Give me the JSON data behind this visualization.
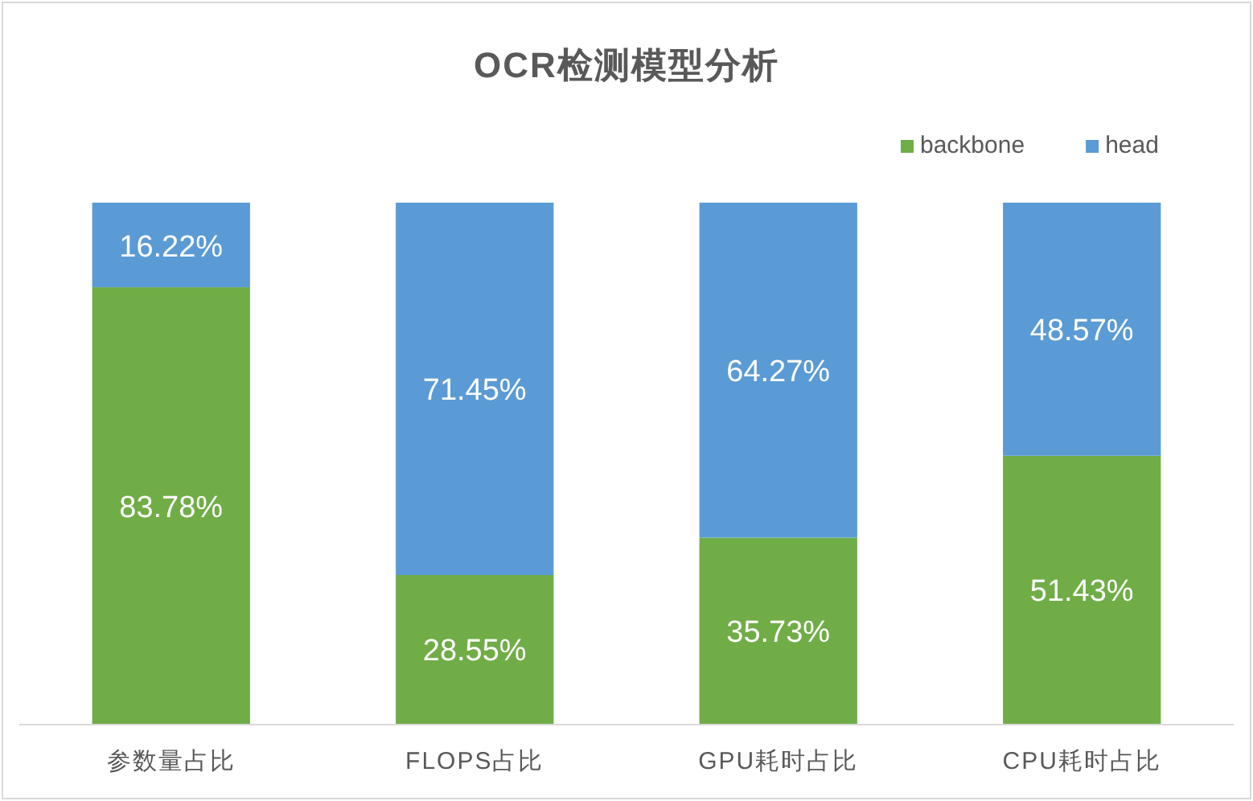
{
  "chart_data": {
    "type": "bar",
    "title": "OCR检测模型分析",
    "stacked": true,
    "legend": "top right",
    "categories": [
      "参数量占比",
      "FLOPS占比",
      "GPU耗时占比",
      "CPU耗时占比"
    ],
    "series": [
      {
        "name": "backbone",
        "color": "#70ad47",
        "values": [
          83.78,
          28.55,
          35.73,
          51.43
        ],
        "value_labels": [
          "83.78%",
          "28.55%",
          "35.73%",
          "51.43%"
        ]
      },
      {
        "name": "head",
        "color": "#5b9bd5",
        "values": [
          16.22,
          71.45,
          64.27,
          48.57
        ],
        "value_labels": [
          "16.22%",
          "71.45%",
          "64.27%",
          "48.57%"
        ]
      }
    ],
    "ylim": [
      0,
      100
    ]
  }
}
